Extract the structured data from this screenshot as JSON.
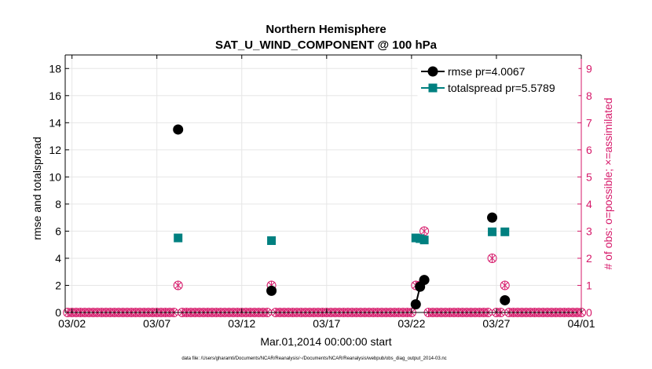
{
  "chart_data": {
    "type": "scatter",
    "title": "Northern Hemisphere",
    "subtitle": "SAT_U_WIND_COMPONENT @ 100 hPa",
    "xlabel": "Mar.01,2014 00:00:00 start",
    "ylabel": "rmse and totalspread",
    "y2label": "# of obs: o=possible; ×=assimilated",
    "footnote": "data file: /Users/gharamti/Documents/NCAR/Reanalysis/~/Documents/NCAR/Reanalysis/webpub/obs_diag_output_2014-03.nc",
    "x_tick_labels": [
      "03/02",
      "03/07",
      "03/12",
      "03/17",
      "03/22",
      "03/27",
      "04/01"
    ],
    "x_tick_days": [
      1,
      6,
      11,
      16,
      21,
      26,
      31
    ],
    "xlim_days": [
      0.6,
      31.0
    ],
    "ylim": [
      0,
      19
    ],
    "y_ticks": [
      0,
      2,
      4,
      6,
      8,
      10,
      12,
      14,
      16,
      18
    ],
    "y2lim": [
      0,
      9.5
    ],
    "y2_ticks": [
      0,
      1,
      2,
      3,
      4,
      5,
      6,
      7,
      8,
      9
    ],
    "grid": true,
    "legend_position": "top-right",
    "series": [
      {
        "name": "rmse pr=4.0067",
        "color": "#000000",
        "marker": "circle",
        "points": [
          {
            "x": 7.25,
            "y": 13.5
          },
          {
            "x": 12.75,
            "y": 1.6
          },
          {
            "x": 21.25,
            "y": 0.6
          },
          {
            "x": 21.5,
            "y": 1.9
          },
          {
            "x": 21.75,
            "y": 2.4
          },
          {
            "x": 25.75,
            "y": 7.0
          },
          {
            "x": 26.5,
            "y": 0.9
          }
        ],
        "connected_segments": [
          [
            2,
            3,
            4
          ]
        ]
      },
      {
        "name": "totalspread pr=5.5789",
        "color": "#008080",
        "marker": "square",
        "points": [
          {
            "x": 7.25,
            "y": 5.5
          },
          {
            "x": 12.75,
            "y": 5.3
          },
          {
            "x": 21.25,
            "y": 5.5
          },
          {
            "x": 21.5,
            "y": 5.45
          },
          {
            "x": 21.75,
            "y": 5.35
          },
          {
            "x": 25.75,
            "y": 5.95
          },
          {
            "x": 26.5,
            "y": 5.95
          }
        ]
      },
      {
        "name": "",
        "axis": "right",
        "color": "#d6196a",
        "marker": "circle-with-cross",
        "nonzero_points": [
          {
            "x": 7.25,
            "y": 1
          },
          {
            "x": 12.75,
            "y": 1
          },
          {
            "x": 21.25,
            "y": 1
          },
          {
            "x": 21.5,
            "y": 1
          },
          {
            "x": 21.75,
            "y": 3
          },
          {
            "x": 25.75,
            "y": 2
          },
          {
            "x": 26.5,
            "y": 1
          }
        ],
        "baseline_value": 0,
        "baseline_step_days": 0.25
      }
    ]
  }
}
